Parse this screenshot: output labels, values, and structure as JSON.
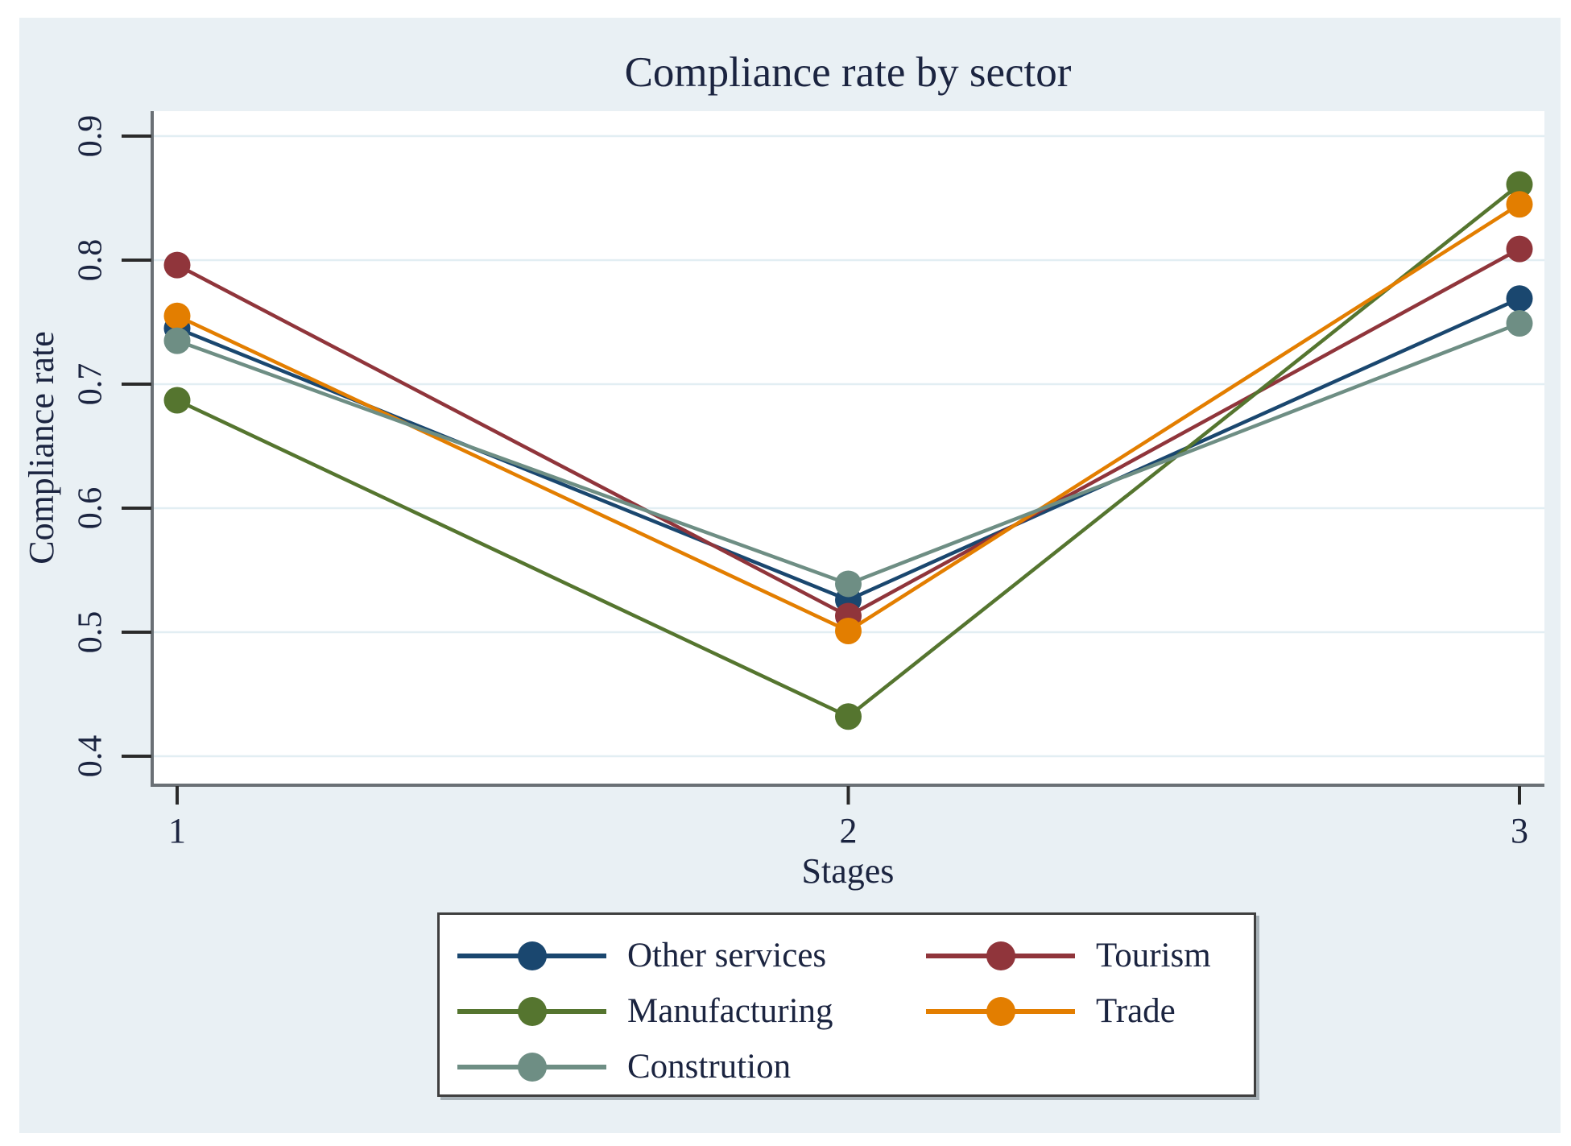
{
  "figure": {
    "background": "#e9f0f4",
    "plot_background": "#ffffff",
    "text_color": "#1b2440",
    "axis_color": "#6a7075",
    "tick_color": "#2a2a2a",
    "grid_color": "#e2eef3",
    "legend_border_color": "#3f3f3f"
  },
  "chart_data": {
    "type": "line",
    "title": "Compliance rate by sector",
    "xlabel": "Stages",
    "ylabel": "Compliance rate",
    "x": [
      1,
      2,
      3
    ],
    "xticklabels": [
      "1",
      "2",
      "3"
    ],
    "yticks": [
      0.4,
      0.5,
      0.6,
      0.7,
      0.8,
      0.9
    ],
    "yticklabels": [
      "0.4",
      "0.5",
      "0.6",
      "0.7",
      "0.8",
      "0.9"
    ],
    "ylim": [
      0.378,
      0.92
    ],
    "xlim": [
      0.96,
      3.04
    ],
    "grid": true,
    "legend_position": "bottom",
    "marker": "circle",
    "series": [
      {
        "name": "Other services",
        "color": "#1a476f",
        "values": [
          0.745,
          0.526,
          0.769
        ]
      },
      {
        "name": "Tourism",
        "color": "#90353b",
        "values": [
          0.796,
          0.513,
          0.809
        ]
      },
      {
        "name": "Manufacturing",
        "color": "#55752f",
        "values": [
          0.687,
          0.432,
          0.861
        ]
      },
      {
        "name": "Trade",
        "color": "#e37e00",
        "values": [
          0.755,
          0.501,
          0.845
        ]
      },
      {
        "name": "Constrution",
        "color": "#6e8e84",
        "values": [
          0.735,
          0.539,
          0.749
        ]
      }
    ]
  }
}
